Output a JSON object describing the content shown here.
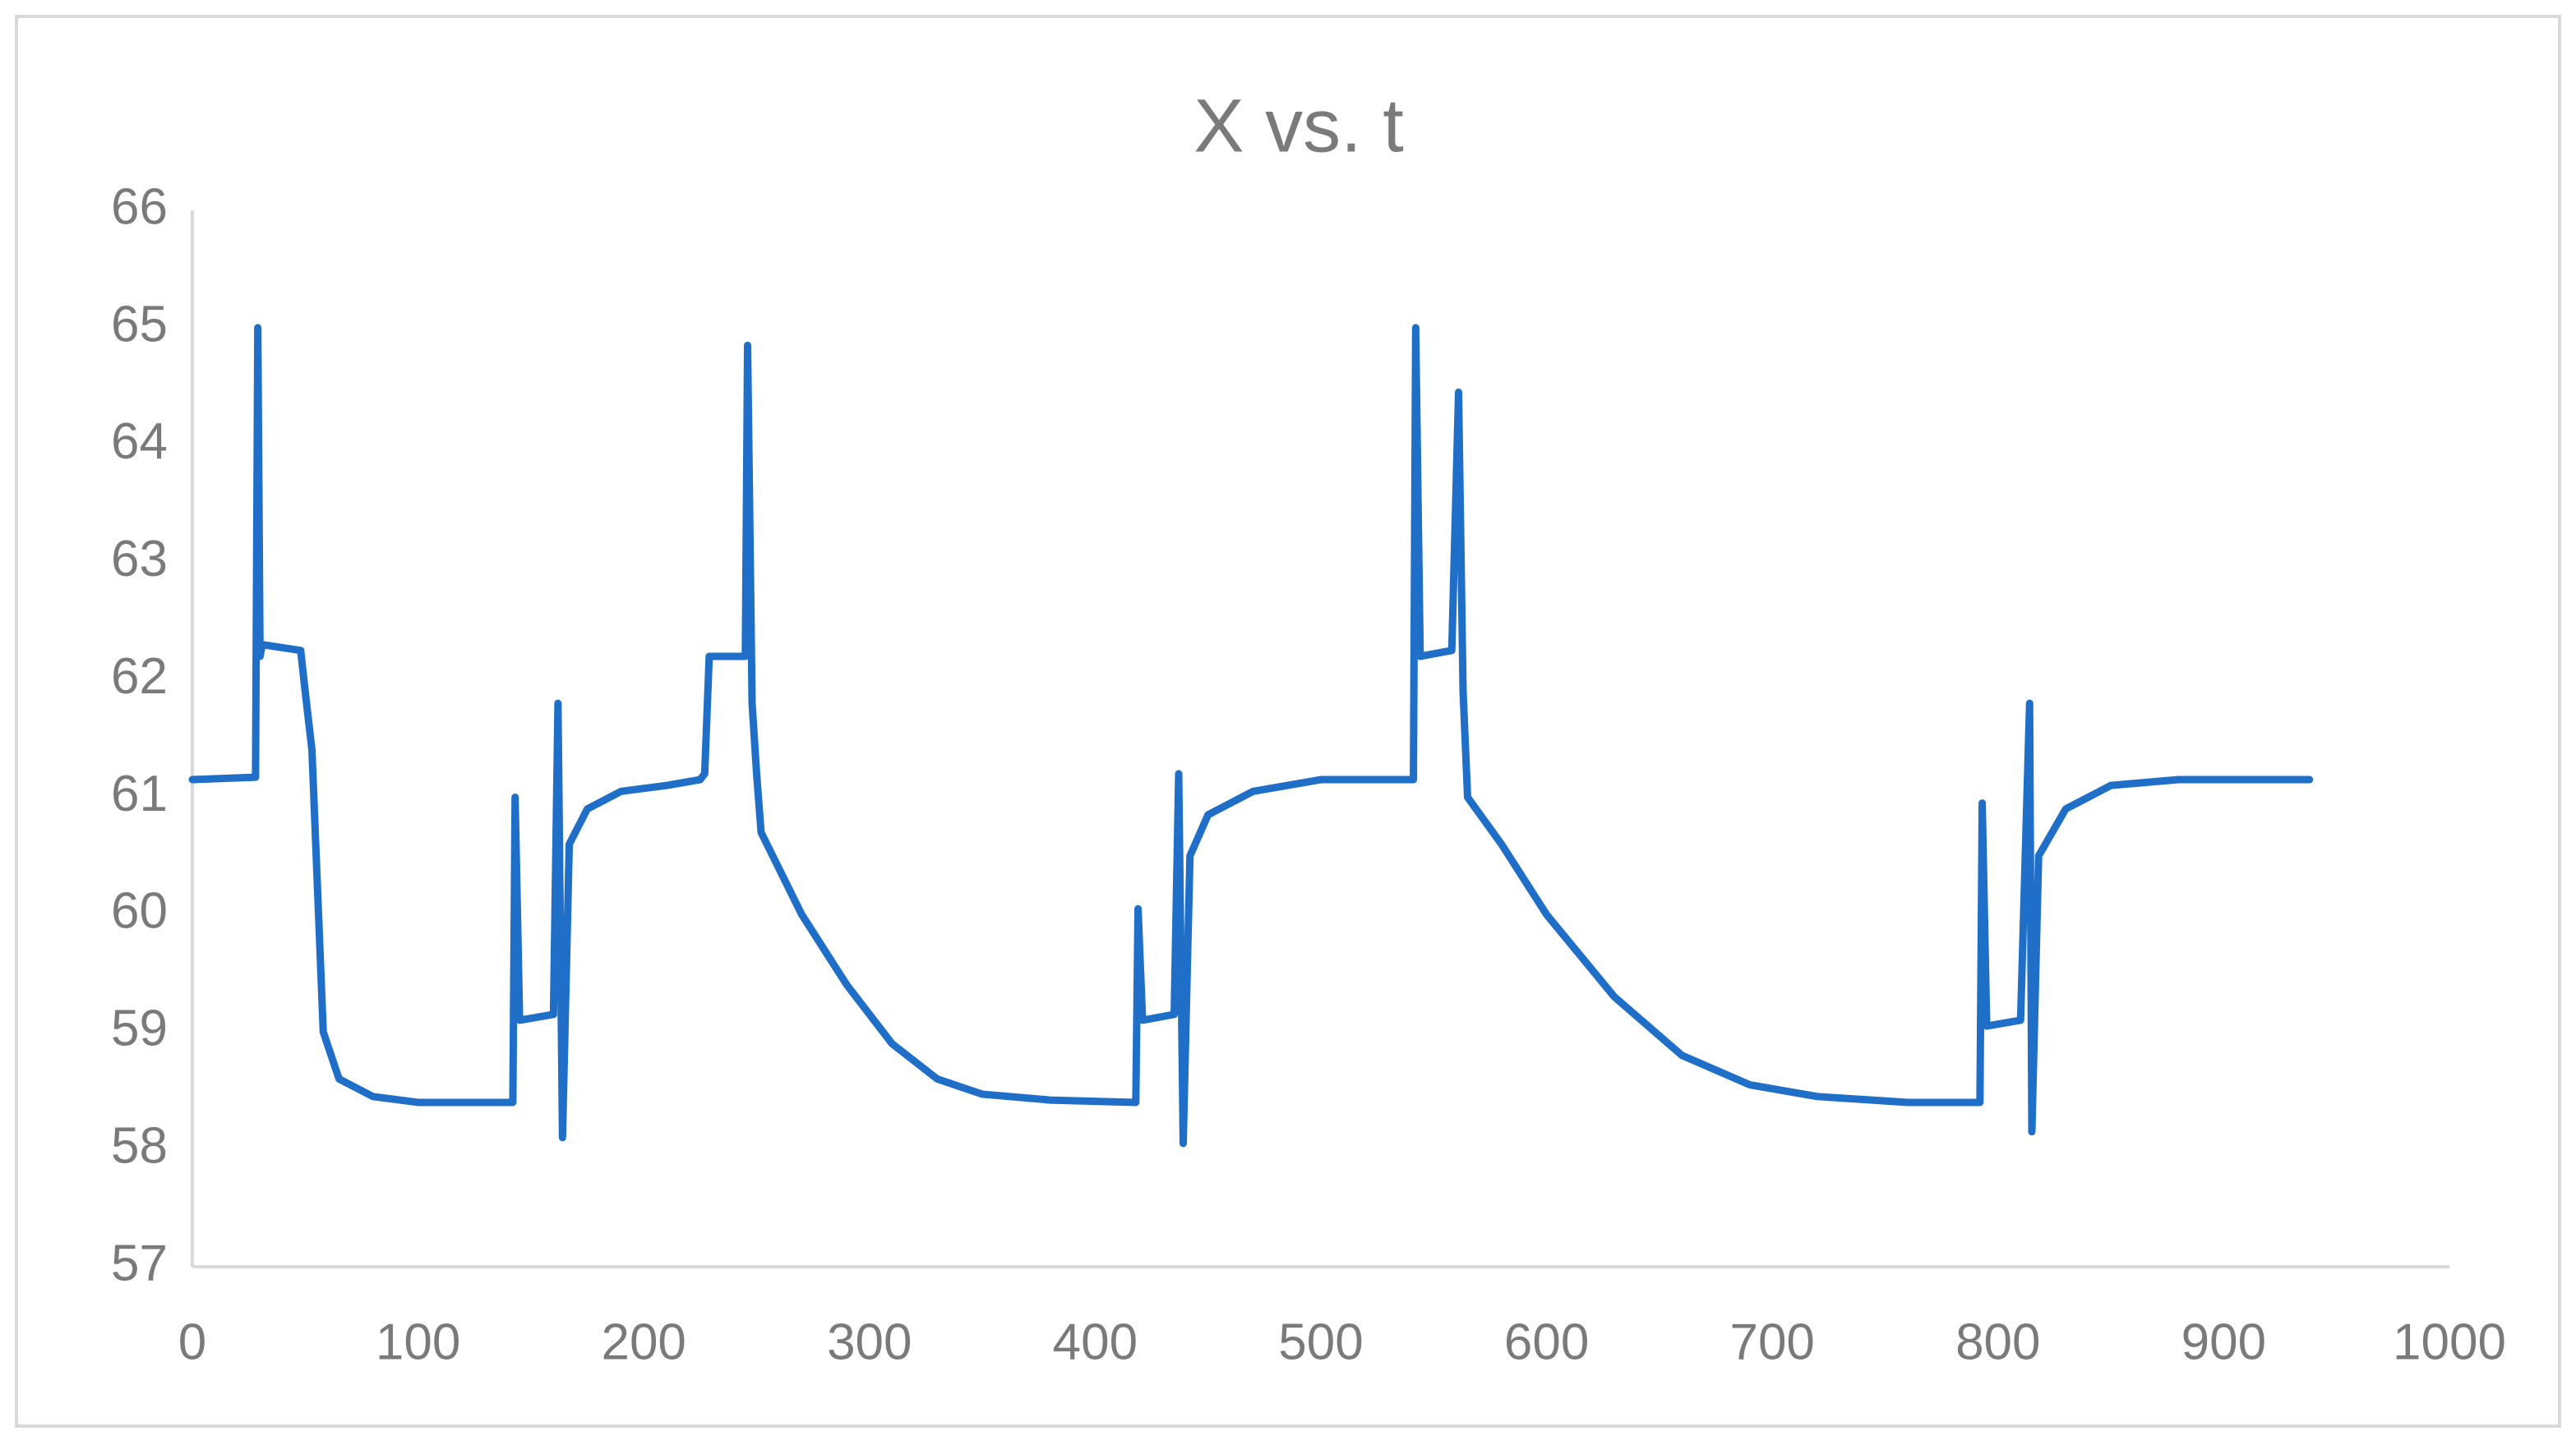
{
  "chart_data": {
    "type": "line",
    "title": "X vs. t",
    "x": [
      0,
      28,
      29,
      30,
      31,
      48,
      50,
      53,
      58,
      65,
      80,
      100,
      142,
      143,
      145,
      160,
      162,
      164,
      167,
      175,
      190,
      210,
      225,
      227,
      229,
      245,
      246,
      248,
      250,
      252,
      270,
      290,
      310,
      330,
      350,
      380,
      418,
      419,
      421,
      435,
      437,
      439,
      442,
      450,
      470,
      500,
      541,
      542,
      544,
      558,
      561,
      563,
      565,
      580,
      600,
      630,
      660,
      690,
      720,
      760,
      792,
      793,
      795,
      810,
      814,
      815,
      818,
      830,
      850,
      880,
      938
    ],
    "series": [
      {
        "name": "X",
        "color": "#1f6fc8",
        "values": [
          61.15,
          61.17,
          65.0,
          62.2,
          62.3,
          62.25,
          61.9,
          61.4,
          59.0,
          58.6,
          58.45,
          58.4,
          58.4,
          61.0,
          59.1,
          59.15,
          61.8,
          58.1,
          60.6,
          60.9,
          61.05,
          61.1,
          61.15,
          61.2,
          62.2,
          62.2,
          64.85,
          61.8,
          61.2,
          60.7,
          60.0,
          59.4,
          58.9,
          58.6,
          58.47,
          58.42,
          58.4,
          60.05,
          59.1,
          59.15,
          61.2,
          58.05,
          60.5,
          60.85,
          61.05,
          61.15,
          61.15,
          65.0,
          62.2,
          62.25,
          64.45,
          61.9,
          61.0,
          60.6,
          60.0,
          59.3,
          58.8,
          58.55,
          58.45,
          58.4,
          58.4,
          60.95,
          59.05,
          59.1,
          61.8,
          58.15,
          60.5,
          60.9,
          61.1,
          61.15,
          61.15
        ]
      }
    ],
    "xlim": [
      0,
      1000
    ],
    "xticks": [
      0,
      100,
      200,
      300,
      400,
      500,
      600,
      700,
      800,
      900,
      1000
    ],
    "ylim": [
      57,
      66
    ],
    "yticks": [
      57,
      58,
      59,
      60,
      61,
      62,
      63,
      64,
      65,
      66
    ],
    "grid": false
  }
}
